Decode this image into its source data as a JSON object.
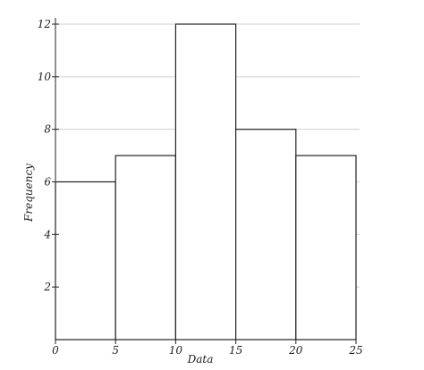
{
  "chart_data": {
    "type": "bar",
    "subtype": "histogram",
    "bins": [
      [
        0,
        5
      ],
      [
        5,
        10
      ],
      [
        10,
        15
      ],
      [
        15,
        20
      ],
      [
        20,
        25
      ]
    ],
    "values": [
      6,
      7,
      12,
      8,
      7
    ],
    "xlabel": "Data",
    "ylabel": "Frequency",
    "xlim": [
      0,
      25
    ],
    "ylim": [
      0,
      12
    ],
    "xticks": [
      "0",
      "5",
      "10",
      "15",
      "20",
      "25"
    ],
    "yticks": [
      "2",
      "4",
      "6",
      "8",
      "10",
      "12"
    ],
    "grid": true,
    "legend": "none"
  }
}
